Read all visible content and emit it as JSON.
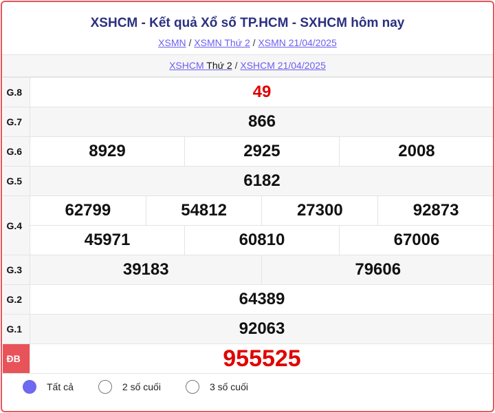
{
  "header": {
    "title": "XSHCM - Kết quả Xổ số TP.HCM - SXHCM hôm nay",
    "breadcrumb": [
      "XSMN",
      "XSMN Thứ 2",
      "XSMN 21/04/2025"
    ],
    "sub": {
      "link1": "XSHCM",
      "link1_plain": "Thứ 2",
      "link2": "XSHCM 21/04/2025"
    }
  },
  "prizes": {
    "g8": {
      "label": "G.8",
      "numbers": [
        "49"
      ]
    },
    "g7": {
      "label": "G.7",
      "numbers": [
        "866"
      ]
    },
    "g6": {
      "label": "G.6",
      "numbers": [
        "8929",
        "2925",
        "2008"
      ]
    },
    "g5": {
      "label": "G.5",
      "numbers": [
        "6182"
      ]
    },
    "g4": {
      "label": "G.4",
      "numbers": [
        "62799",
        "54812",
        "27300",
        "92873",
        "45971",
        "60810",
        "67006"
      ]
    },
    "g3": {
      "label": "G.3",
      "numbers": [
        "39183",
        "79606"
      ]
    },
    "g2": {
      "label": "G.2",
      "numbers": [
        "64389"
      ]
    },
    "g1": {
      "label": "G.1",
      "numbers": [
        "92063"
      ]
    },
    "db": {
      "label": "ĐB",
      "numbers": [
        "955525"
      ]
    }
  },
  "filter": {
    "options": [
      "Tất cả",
      "2 số cuối",
      "3 số cuối"
    ],
    "selected": "Tất cả"
  },
  "colors": {
    "accent": "#6f68f0",
    "prize_red": "#e00000",
    "border": "#e8535a",
    "title": "#2b3080"
  }
}
